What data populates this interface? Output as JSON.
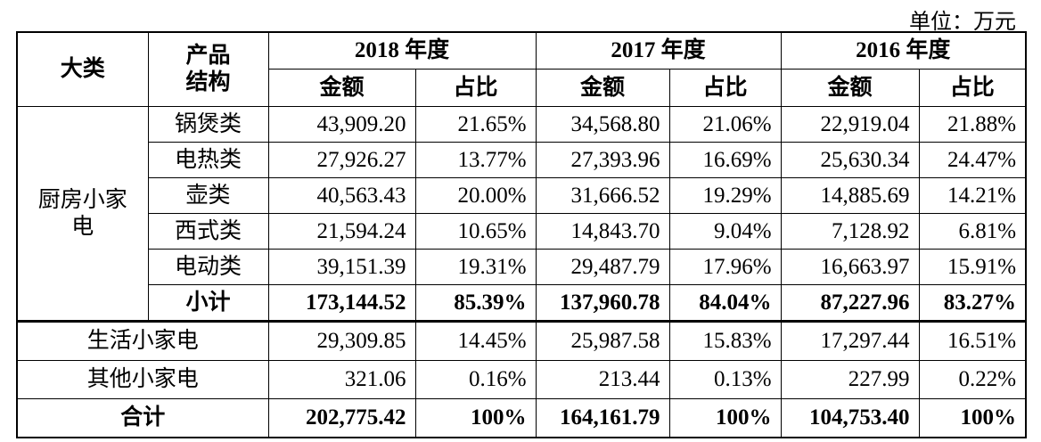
{
  "unit": "单位：万元",
  "table": {
    "header": {
      "category": "大类",
      "product": [
        "产品",
        "结构"
      ],
      "years": [
        "2018 年度",
        "2017 年度",
        "2016 年度"
      ],
      "sub": [
        "金额",
        "占比",
        "金额",
        "占比",
        "金额",
        "占比"
      ]
    },
    "group": [
      "厨房小家",
      "电"
    ],
    "rows": [
      {
        "product": "锅煲类",
        "values": [
          "43,909.20",
          "21.65%",
          "34,568.80",
          "21.06%",
          "22,919.04",
          "21.88%"
        ]
      },
      {
        "product": "电热类",
        "values": [
          "27,926.27",
          "13.77%",
          "27,393.96",
          "16.69%",
          "25,630.34",
          "24.47%"
        ]
      },
      {
        "product": "壶类",
        "values": [
          "40,563.43",
          "20.00%",
          "31,666.52",
          "19.29%",
          "14,885.69",
          "14.21%"
        ]
      },
      {
        "product": "西式类",
        "values": [
          "21,594.24",
          "10.65%",
          "14,843.70",
          "9.04%",
          "7,128.92",
          "6.81%"
        ]
      },
      {
        "product": "电动类",
        "values": [
          "39,151.39",
          "19.31%",
          "29,487.79",
          "17.96%",
          "16,663.97",
          "15.91%"
        ]
      },
      {
        "product": "小计",
        "values": [
          "173,144.52",
          "85.39%",
          "137,960.78",
          "84.04%",
          "87,227.96",
          "83.27%"
        ]
      }
    ],
    "others": [
      {
        "name": "生活小家电",
        "values": [
          "29,309.85",
          "14.45%",
          "25,987.58",
          "15.83%",
          "17,297.44",
          "16.51%"
        ]
      },
      {
        "name": "其他小家电",
        "values": [
          "321.06",
          "0.16%",
          "213.44",
          "0.13%",
          "227.99",
          "0.22%"
        ]
      },
      {
        "name": "合计",
        "values": [
          "202,775.42",
          "100%",
          "164,161.79",
          "100%",
          "104,753.40",
          "100%"
        ]
      }
    ]
  }
}
